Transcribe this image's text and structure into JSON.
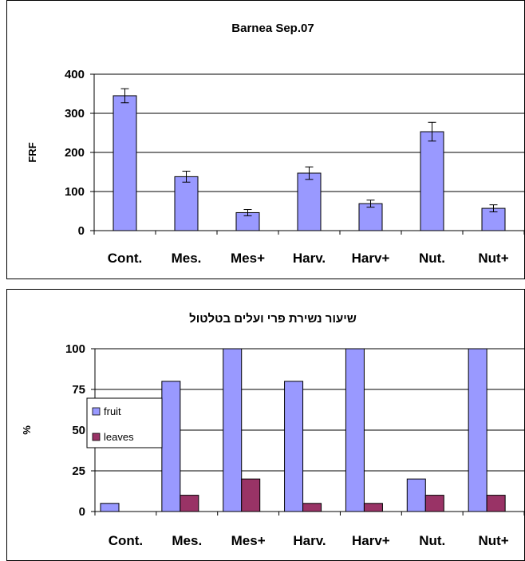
{
  "chart_data": [
    {
      "type": "bar",
      "title": "Barnea Sep.07",
      "xlabel": "",
      "ylabel": "FRF",
      "ylim": [
        0,
        400
      ],
      "yticks": [
        0,
        100,
        200,
        300,
        400
      ],
      "grid": true,
      "categories": [
        "Cont.",
        "Mes.",
        "Mes+",
        "Harv.",
        "Harv+",
        "Nut.",
        "Nut+"
      ],
      "values": [
        345,
        138,
        46,
        147,
        69,
        253,
        57
      ],
      "errors": [
        18,
        14,
        8,
        16,
        9,
        24,
        9
      ],
      "colors": {
        "bar": "#9999ff",
        "bar_stroke": "#000000",
        "grid": "#000000"
      }
    },
    {
      "type": "bar",
      "title": "שיעור  נשירת פרי ועלים  בטלטול",
      "xlabel": "",
      "ylabel": "%",
      "ylim": [
        0,
        100
      ],
      "yticks": [
        0,
        25,
        50,
        75,
        100
      ],
      "grid": true,
      "legend": "left",
      "categories": [
        "Cont.",
        "Mes.",
        "Mes+",
        "Harv.",
        "Harv+",
        "Nut.",
        "Nut+"
      ],
      "series": [
        {
          "name": "fruit",
          "values": [
            5,
            80,
            100,
            80,
            100,
            20,
            100
          ],
          "color": "#9999ff"
        },
        {
          "name": "leaves",
          "values": [
            0,
            10,
            20,
            5,
            5,
            10,
            10
          ],
          "color": "#993366"
        }
      ]
    }
  ]
}
